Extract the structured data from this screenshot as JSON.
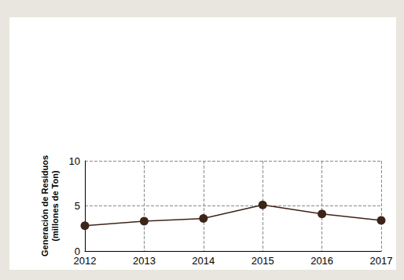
{
  "chart_data": {
    "type": "line",
    "y_label": "Generación de Residuos (millones de Ton)",
    "x": [
      2012,
      2013,
      2014,
      2015,
      2016,
      2017
    ],
    "values": [
      2.8,
      3.3,
      3.6,
      5.1,
      4.1,
      3.4
    ],
    "color": "#3d2419",
    "marker": "circle",
    "xlim": [
      2012,
      2017
    ],
    "xticks": [
      2012,
      2013,
      2014,
      2015,
      2016,
      2017
    ],
    "ylim": [
      0,
      10
    ],
    "yticks": [
      0,
      5,
      10
    ],
    "grid": true
  }
}
